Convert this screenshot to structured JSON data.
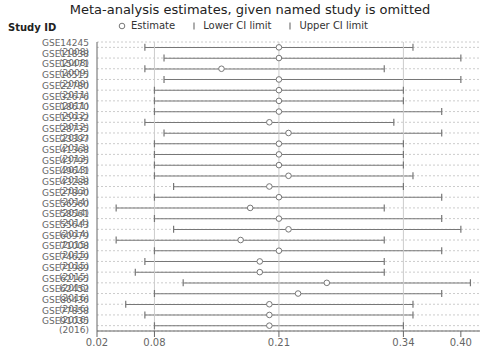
{
  "chart_data": {
    "type": "forest",
    "title": "Meta-analysis estimates, given named study is omitted",
    "ylabel": "Study ID",
    "orientation": "horizontal",
    "categories": [
      "GSE14245 (2008)",
      "GSE11838 (2008)",
      "GSE15471 (2009)",
      "GSE16515 (2009)",
      "GSE22780 (2011)",
      "GSE32676 (2011)",
      "GSE18670 (2012)",
      "GSE15932 (2012)",
      "GSE28735 (2012)",
      "GSE23397 (2013)",
      "GSE41368 (2013)",
      "GSE43795 (2013)",
      "GSE49641 (2013)",
      "GSE43288 (2013)",
      "GSE27890 (2014)",
      "GSE56560 (2014)",
      "GSE58561 (2014)",
      "GSE55643 (2014)",
      "GSE60979 (2015)",
      "GSE71008 (2015)",
      "GSE74629 (2015)",
      "GSE71989 (2015)",
      "GSE62165 (2016)",
      "GSE62452 (2016)",
      "GSE86436 (2016)",
      "GSE77858 (2016)",
      "GSE91035 (2016)"
    ],
    "series": [
      {
        "name": "Lower CI limit",
        "color": "#777777",
        "marker": "tick",
        "values": [
          0.07,
          0.09,
          0.07,
          0.09,
          0.08,
          0.08,
          0.08,
          0.07,
          0.09,
          0.08,
          0.08,
          0.08,
          0.08,
          0.1,
          0.08,
          0.04,
          0.08,
          0.1,
          0.04,
          0.08,
          0.07,
          0.06,
          0.11,
          0.08,
          0.05,
          0.07,
          0.08
        ]
      },
      {
        "name": "Estimate",
        "color": "#777777",
        "marker": "open_circle",
        "values": [
          0.21,
          0.21,
          0.15,
          0.21,
          0.21,
          0.21,
          0.21,
          0.2,
          0.22,
          0.21,
          0.21,
          0.21,
          0.22,
          0.2,
          0.21,
          0.18,
          0.21,
          0.22,
          0.17,
          0.21,
          0.19,
          0.19,
          0.26,
          0.23,
          0.2,
          0.2,
          0.2
        ]
      },
      {
        "name": "Upper CI limit",
        "color": "#777777",
        "marker": "tick",
        "values": [
          0.35,
          0.4,
          0.32,
          0.4,
          0.34,
          0.34,
          0.38,
          0.33,
          0.38,
          0.34,
          0.34,
          0.34,
          0.35,
          0.34,
          0.38,
          0.32,
          0.38,
          0.4,
          0.32,
          0.38,
          0.32,
          0.32,
          0.41,
          0.38,
          0.35,
          0.35,
          0.34
        ]
      }
    ],
    "reference_lines": [
      0.08,
      0.21,
      0.34
    ],
    "xlim": [
      0.02,
      0.42
    ],
    "xticks": [
      0.02,
      0.08,
      0.21,
      0.34,
      {
        "value": 0.4,
        "label": "0.40"
      }
    ],
    "grid": true,
    "legend": "top"
  }
}
